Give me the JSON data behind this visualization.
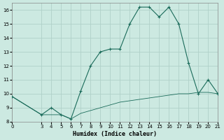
{
  "xlabel": "Humidex (Indice chaleur)",
  "xlim": [
    0,
    21
  ],
  "ylim": [
    8,
    16.5
  ],
  "xticks": [
    0,
    3,
    4,
    5,
    6,
    7,
    8,
    9,
    10,
    11,
    12,
    13,
    14,
    15,
    16,
    17,
    18,
    19,
    20,
    21
  ],
  "yticks": [
    8,
    9,
    10,
    11,
    12,
    13,
    14,
    15,
    16
  ],
  "bg_color": "#cce9e1",
  "grid_color": "#b0d0c8",
  "line_color": "#1a6b5a",
  "line1_x": [
    0,
    3,
    4,
    5,
    6,
    7,
    8,
    9,
    10,
    11,
    12,
    13,
    14,
    15,
    16,
    17,
    18,
    19,
    20,
    21
  ],
  "line1_y": [
    9.8,
    8.5,
    9.0,
    8.5,
    8.2,
    10.2,
    12.0,
    13.0,
    13.2,
    13.2,
    15.0,
    16.2,
    16.2,
    15.5,
    16.2,
    15.0,
    12.2,
    10.0,
    11.0,
    10.0
  ],
  "line2_x": [
    0,
    3,
    4,
    5,
    6,
    7,
    8,
    9,
    10,
    11,
    12,
    13,
    14,
    15,
    16,
    17,
    18,
    19,
    20,
    21
  ],
  "line2_y": [
    9.8,
    8.5,
    8.5,
    8.5,
    8.2,
    8.6,
    8.8,
    9.0,
    9.2,
    9.4,
    9.5,
    9.6,
    9.7,
    9.8,
    9.9,
    10.0,
    10.0,
    10.1,
    10.1,
    10.0
  ]
}
